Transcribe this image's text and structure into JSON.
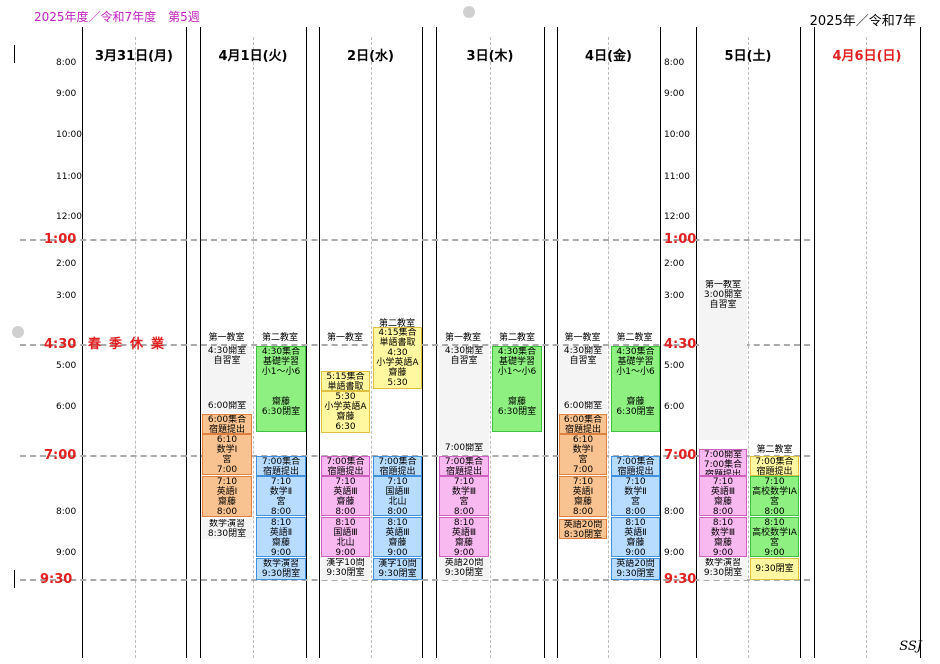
{
  "header": {
    "left_title": "2025年度／令和7年度　第5週",
    "right_title": "2025年／令和7年"
  },
  "columns": [
    {
      "label": "3月31日(月)",
      "color": "#000000"
    },
    {
      "label": "4月1日(火)",
      "color": "#000000"
    },
    {
      "label": "2日(水)",
      "color": "#000000"
    },
    {
      "label": "3日(木)",
      "color": "#000000"
    },
    {
      "label": "4日(金)",
      "color": "#000000"
    },
    {
      "label": "5日(土)",
      "color": "#000000"
    },
    {
      "label": "4月6日(日)",
      "color": "#e02020"
    }
  ],
  "hours": [
    "8:00",
    "9:00",
    "10:00",
    "11:00",
    "12:00",
    "1:00",
    "2:00",
    "3:00",
    "4:30",
    "5:00",
    "6:00",
    "7:00",
    "8:00",
    "9:00",
    "9:30"
  ],
  "spring_break": "春季休業",
  "rooms": {
    "first": "第一教室",
    "second": "第二教室"
  },
  "tue": {
    "r1": {
      "b1": [
        "4:30開室",
        "自習室"
      ],
      "b2": [
        "6:00開室"
      ],
      "b3": [
        "6:00集合",
        "宿題提出"
      ],
      "b4": [
        "6:10",
        "数学Ⅰ",
        "宮",
        "7:00"
      ],
      "b5": [
        "7:10",
        "英語Ⅰ",
        "齋藤",
        "8:00"
      ],
      "b6": [
        "数学演習",
        "8:30閉室"
      ]
    },
    "r2": {
      "b1": [
        "4:30集合",
        "基礎学習",
        "小1～小6",
        "",
        "",
        "齋藤",
        "6:30閉室"
      ],
      "b2": [
        "7:00集合",
        "宿題提出"
      ],
      "b3": [
        "7:10",
        "数学Ⅱ",
        "宮",
        "8:00"
      ],
      "b4": [
        "8:10",
        "英語Ⅱ",
        "齋藤",
        "9:00"
      ],
      "b5": [
        "数学演習",
        "9:30閉室"
      ]
    }
  },
  "wed": {
    "r1": {
      "b1": [
        "5:15集合",
        "単語書取"
      ],
      "b2": [
        "5:30",
        "小学英語A",
        "齋藤",
        "6:30"
      ],
      "b3": [
        "7:00集合",
        "宿題提出"
      ],
      "b4": [
        "7:10",
        "英語Ⅲ",
        "齋藤",
        "8:00"
      ],
      "b5": [
        "8:10",
        "国語Ⅲ",
        "北山",
        "9:00"
      ],
      "b6": [
        "漢字10問",
        "9:30閉室"
      ]
    },
    "r2": {
      "b1": [
        "4:15集合",
        "単語書取",
        "4:30",
        "小学英語A",
        "齋藤",
        "5:30"
      ],
      "b2": [
        "7:00集合",
        "宿題提出"
      ],
      "b3": [
        "7:10",
        "国語Ⅲ",
        "北山",
        "8:00"
      ],
      "b4": [
        "8:10",
        "英語Ⅲ",
        "齋藤",
        "9:00"
      ],
      "b5": [
        "漢字10問",
        "9:30閉室"
      ]
    }
  },
  "thu": {
    "r1": {
      "b1": [
        "4:30開室",
        "自習室"
      ],
      "b2": [
        "7:00開室"
      ],
      "b3": [
        "7:00集合",
        "宿題提出"
      ],
      "b4": [
        "7:10",
        "数学Ⅲ",
        "宮",
        "8:00"
      ],
      "b5": [
        "8:10",
        "英語Ⅲ",
        "齋藤",
        "9:00"
      ],
      "b6": [
        "英語20問",
        "9:30閉室"
      ]
    },
    "r2": {
      "b1": [
        "4:30集合",
        "基礎学習",
        "小1～小6",
        "",
        "",
        "齋藤",
        "6:30閉室"
      ]
    }
  },
  "fri": {
    "r1": {
      "b1": [
        "4:30開室",
        "自習室"
      ],
      "b2": [
        "6:00開室"
      ],
      "b3": [
        "6:00集合",
        "宿題提出"
      ],
      "b4": [
        "6:10",
        "数学Ⅰ",
        "宮",
        "7:00"
      ],
      "b5": [
        "7:10",
        "英語Ⅰ",
        "齋藤",
        "8:00"
      ],
      "b6": [
        "英語20問",
        "8:30閉室"
      ]
    },
    "r2": {
      "b1": [
        "4:30集合",
        "基礎学習",
        "小1～小6",
        "",
        "",
        "齋藤",
        "6:30閉室"
      ],
      "b2": [
        "7:00集合",
        "宿題提出"
      ],
      "b3": [
        "7:10",
        "数学Ⅱ",
        "宮",
        "8:00"
      ],
      "b4": [
        "8:10",
        "英語Ⅱ",
        "齋藤",
        "9:00"
      ],
      "b5": [
        "英語20問",
        "9:30閉室"
      ]
    }
  },
  "sat": {
    "r1": {
      "b0": [
        "第一教室",
        "3:00開室",
        "自習室"
      ],
      "b1": [
        "7:00開室",
        "7:00集合",
        "宿題提出"
      ],
      "b2": [
        "7:10",
        "英語Ⅲ",
        "齋藤",
        "8:00"
      ],
      "b3": [
        "8:10",
        "数学Ⅲ",
        "齋藤",
        "9:00"
      ],
      "b4": [
        "数学演習",
        "9:30閉室"
      ]
    },
    "r2": {
      "b1": [
        "7:00集合",
        "宿題提出"
      ],
      "b2": [
        "7:10",
        "高校数学ⅠA",
        "宮",
        "8:00"
      ],
      "b3": [
        "8:10",
        "高校数学ⅠA",
        "宮",
        "9:00"
      ],
      "b4": [
        "9:30閉室"
      ]
    }
  },
  "signature": "SSJ"
}
